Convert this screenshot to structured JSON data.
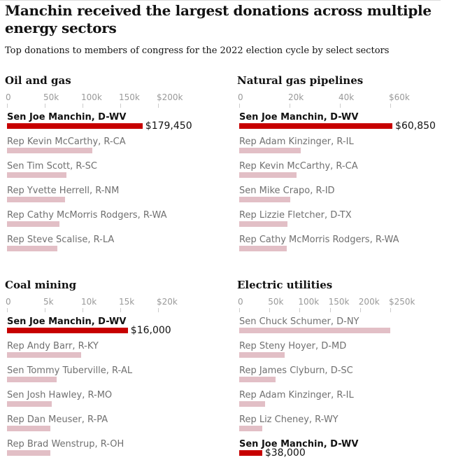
{
  "title": "Manchin received the largest donations across multiple energy sectors",
  "subtitle": "Top donations to members of congress for the 2022 election cycle by select sectors",
  "colors": {
    "highlight": "#c70000",
    "other": "#e2bfc6"
  },
  "chart_data": [
    {
      "type": "bar",
      "title": "Oil and gas",
      "xlim": [
        0,
        200000
      ],
      "ticks": [
        "0",
        "50k",
        "100k",
        "150k",
        "$200k"
      ],
      "categories": [
        "Sen Joe Manchin, D-WV",
        "Rep Kevin McCarthy, R-CA",
        "Sen Tim Scott, R-SC",
        "Rep Yvette Herrell, R-NM",
        "Rep Cathy McMorris Rodgers, R-WA",
        "Rep Steve Scalise, R-LA"
      ],
      "values": [
        179450,
        113000,
        79000,
        77000,
        69000,
        67000
      ],
      "highlight": 0,
      "highlight_label": "$179,450"
    },
    {
      "type": "bar",
      "title": "Natural gas pipelines",
      "xlim": [
        0,
        60000
      ],
      "ticks": [
        "0",
        "20k",
        "40k",
        "$60k"
      ],
      "categories": [
        "Sen Joe Manchin, D-WV",
        "Rep Adam Kinzinger, R-IL",
        "Rep Kevin McCarthy, R-CA",
        "Sen Mike Crapo, R-ID",
        "Rep Lizzie Fletcher, D-TX",
        "Rep Cathy McMorris Rodgers, R-WA"
      ],
      "values": [
        60850,
        24400,
        22800,
        20300,
        19200,
        18900
      ],
      "highlight": 0,
      "highlight_label": "$60,850"
    },
    {
      "type": "bar",
      "title": "Coal mining",
      "xlim": [
        0,
        20000
      ],
      "ticks": [
        "0",
        "5k",
        "10k",
        "15k",
        "$20k"
      ],
      "categories": [
        "Sen Joe Manchin, D-WV",
        "Rep Andy Barr, R-KY",
        "Sen Tommy Tuberville, R-AL",
        "Sen Josh Hawley, R-MO",
        "Rep Dan Meuser, R-PA",
        "Rep Brad Wenstrup, R-OH"
      ],
      "values": [
        16000,
        9800,
        6600,
        5900,
        5700,
        5700
      ],
      "highlight": 0,
      "highlight_label": "$16,000"
    },
    {
      "type": "bar",
      "title": "Electric utilities",
      "xlim": [
        0,
        250000
      ],
      "ticks": [
        "0",
        "50k",
        "100k",
        "150k",
        "200k",
        "$250k"
      ],
      "categories": [
        "Sen Chuck Schumer, D-NY",
        "Rep Steny Hoyer, D-MD",
        "Rep James Clyburn, D-SC",
        "Rep Adam Kinzinger, R-IL",
        "Rep Liz Cheney, R-WY",
        "Sen Joe Manchin, D-WV"
      ],
      "values": [
        250000,
        75000,
        60000,
        43000,
        38500,
        38000
      ],
      "highlight": 5,
      "highlight_label": "$38,000"
    }
  ]
}
